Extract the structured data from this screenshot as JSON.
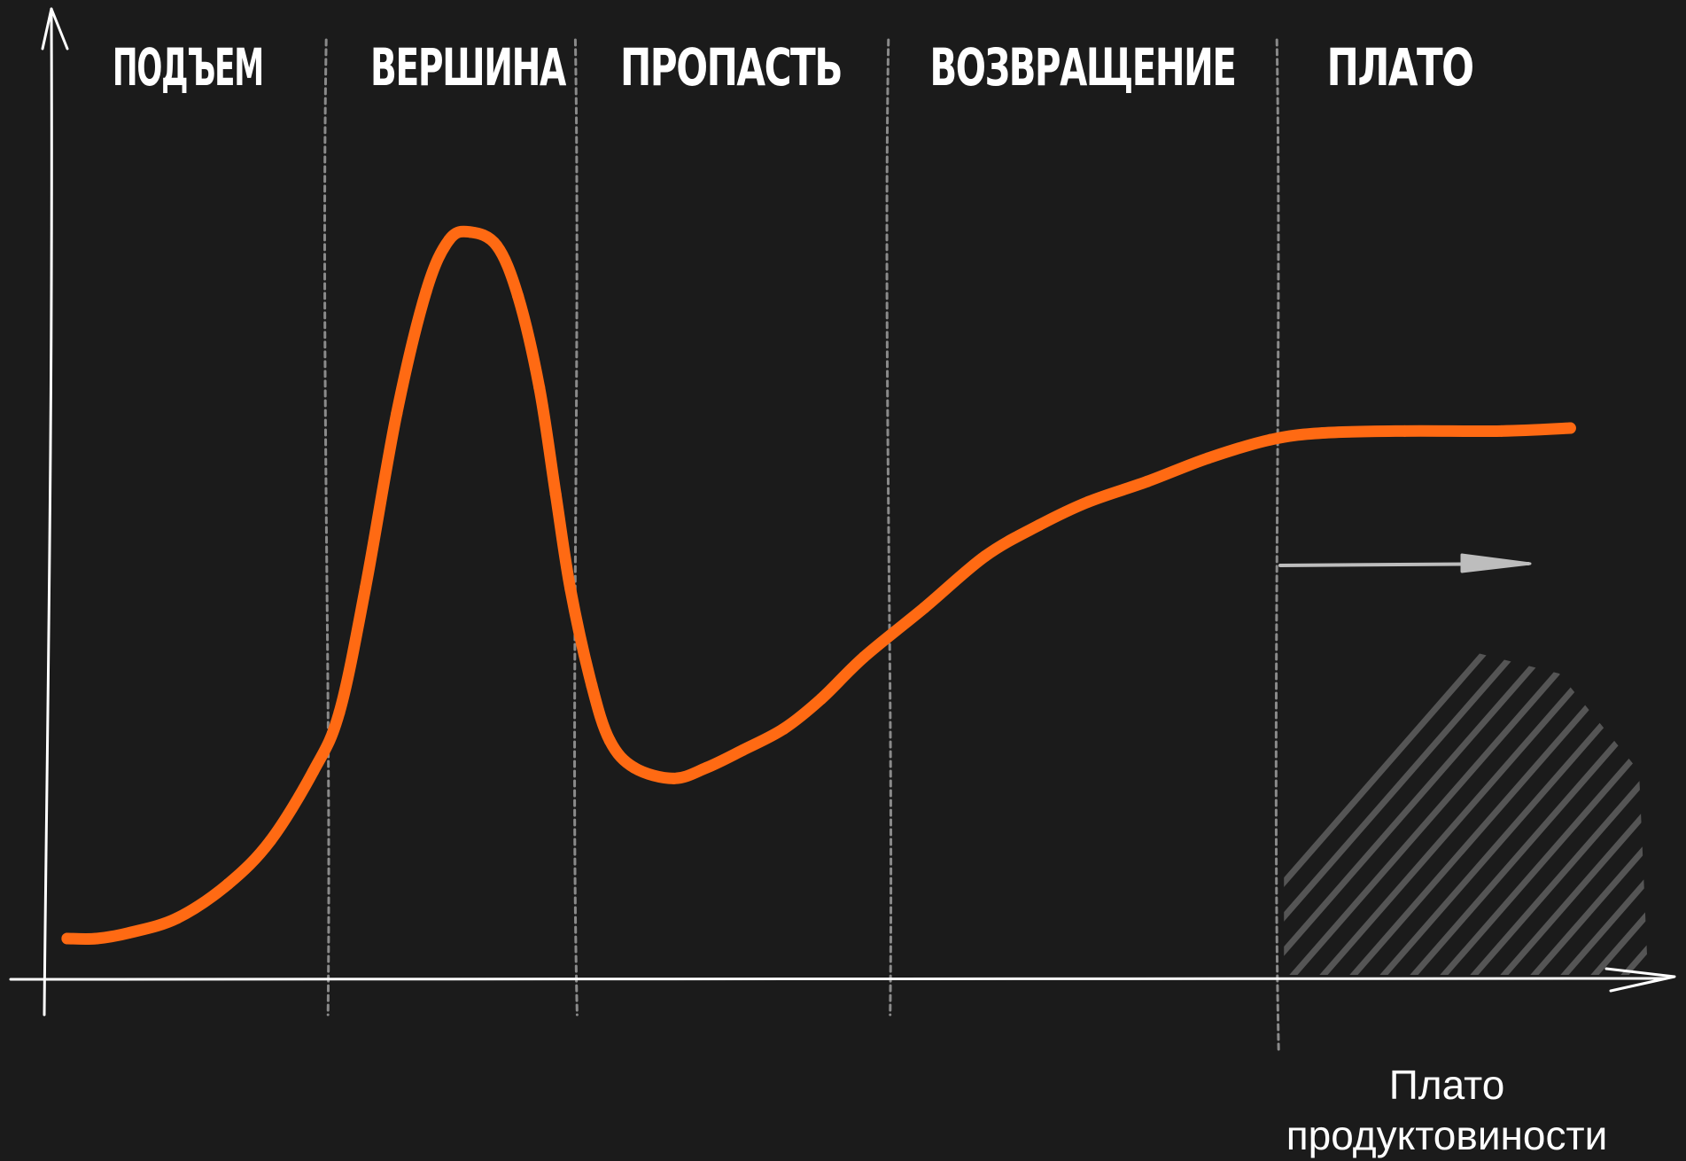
{
  "chart_data": {
    "type": "line",
    "title": "",
    "xlabel": "",
    "ylabel": "",
    "xlim": [
      0,
      100
    ],
    "ylim": [
      0,
      100
    ],
    "grid": false,
    "phases": [
      {
        "label": "ПОДЪЕМ",
        "start": 0,
        "end": 17.2
      },
      {
        "label": "ВЕРШИНА",
        "start": 17.2,
        "end": 32.4
      },
      {
        "label": "ПРОПАСТЬ",
        "start": 32.4,
        "end": 51.5
      },
      {
        "label": "ВОЗВРАЩЕНИЕ",
        "start": 51.5,
        "end": 75.2
      },
      {
        "label": "ПЛАТО",
        "start": 75.2,
        "end": 100
      }
    ],
    "series": [
      {
        "x": [
          1.4,
          3.2,
          5.2,
          8.1,
          11.2,
          13.8,
          16.4,
          18.0,
          19.6,
          21.5,
          23.3,
          24.7,
          26.0,
          27.6,
          28.9,
          30.2,
          31.2,
          32.1,
          33.4,
          34.5,
          36.0,
          38.4,
          40.4,
          42.6,
          45.1,
          47.4,
          50.0,
          53.7,
          57.4,
          60.7,
          63.7,
          67.3,
          71.0,
          74.8,
          78.0,
          83.0,
          88.9,
          93.1
        ],
        "values": [
          4.2,
          4.2,
          4.8,
          6.3,
          9.8,
          14.3,
          21.4,
          27.5,
          40.4,
          58.3,
          70.9,
          76.2,
          77.0,
          75.6,
          70.4,
          61.0,
          50.0,
          40.2,
          30.3,
          24.6,
          21.8,
          20.7,
          21.8,
          23.6,
          25.8,
          28.9,
          33.2,
          38.3,
          43.6,
          46.8,
          49.2,
          51.3,
          53.7,
          55.6,
          56.3,
          56.5,
          56.5,
          56.8
        ]
      }
    ],
    "annotations": [
      {
        "text": "Плато\nпродуктовиности",
        "x": 85,
        "position": "below-axis"
      }
    ],
    "colors": {
      "background": "#1b1b1b",
      "curve": "#ff6a13",
      "axes": "#ffffff",
      "dividers": "#8a8a8a",
      "hatch": "#6a6a6a",
      "text": "#ffffff"
    }
  }
}
